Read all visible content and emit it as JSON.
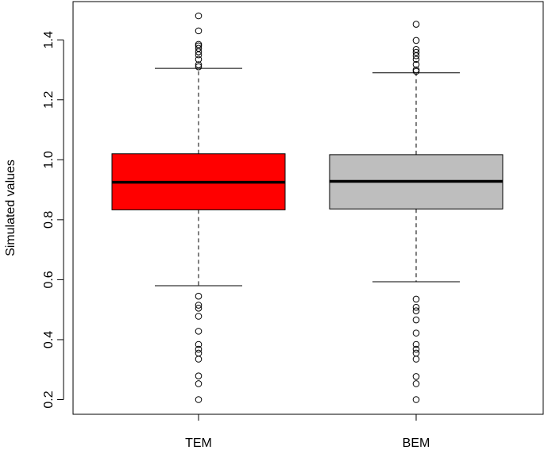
{
  "chart_data": {
    "type": "boxplot",
    "title": "",
    "xlabel": "",
    "ylabel": "Simulated values",
    "ylim": [
      0.15,
      1.5
    ],
    "yticks": [
      0.2,
      0.4,
      0.6,
      0.8,
      1.0,
      1.2,
      1.4
    ],
    "ytick_labels": [
      "0.2",
      "0.4",
      "0.6",
      "0.8",
      "1.0",
      "1.2",
      "1.4"
    ],
    "grid": false,
    "categories": [
      "TEM",
      "BEM"
    ],
    "boxes": [
      {
        "category": "TEM",
        "color": "#ff0000",
        "whisker_low": 0.58,
        "q1": 0.833,
        "median": 0.925,
        "q3": 1.02,
        "whisker_high": 1.305,
        "outliers_low": [
          0.2,
          0.253,
          0.279,
          0.335,
          0.355,
          0.368,
          0.384,
          0.428,
          0.478,
          0.505,
          0.515,
          0.545
        ],
        "outliers_high": [
          1.31,
          1.317,
          1.335,
          1.35,
          1.36,
          1.372,
          1.38,
          1.385,
          1.43,
          1.48
        ]
      },
      {
        "category": "BEM",
        "color": "#bebebe",
        "whisker_low": 0.593,
        "q1": 0.836,
        "median": 0.928,
        "q3": 1.017,
        "whisker_high": 1.29,
        "outliers_low": [
          0.2,
          0.253,
          0.277,
          0.335,
          0.355,
          0.368,
          0.384,
          0.422,
          0.466,
          0.496,
          0.508,
          0.535
        ],
        "outliers_high": [
          1.295,
          1.3,
          1.318,
          1.335,
          1.347,
          1.358,
          1.368,
          1.398,
          1.452
        ]
      }
    ]
  }
}
